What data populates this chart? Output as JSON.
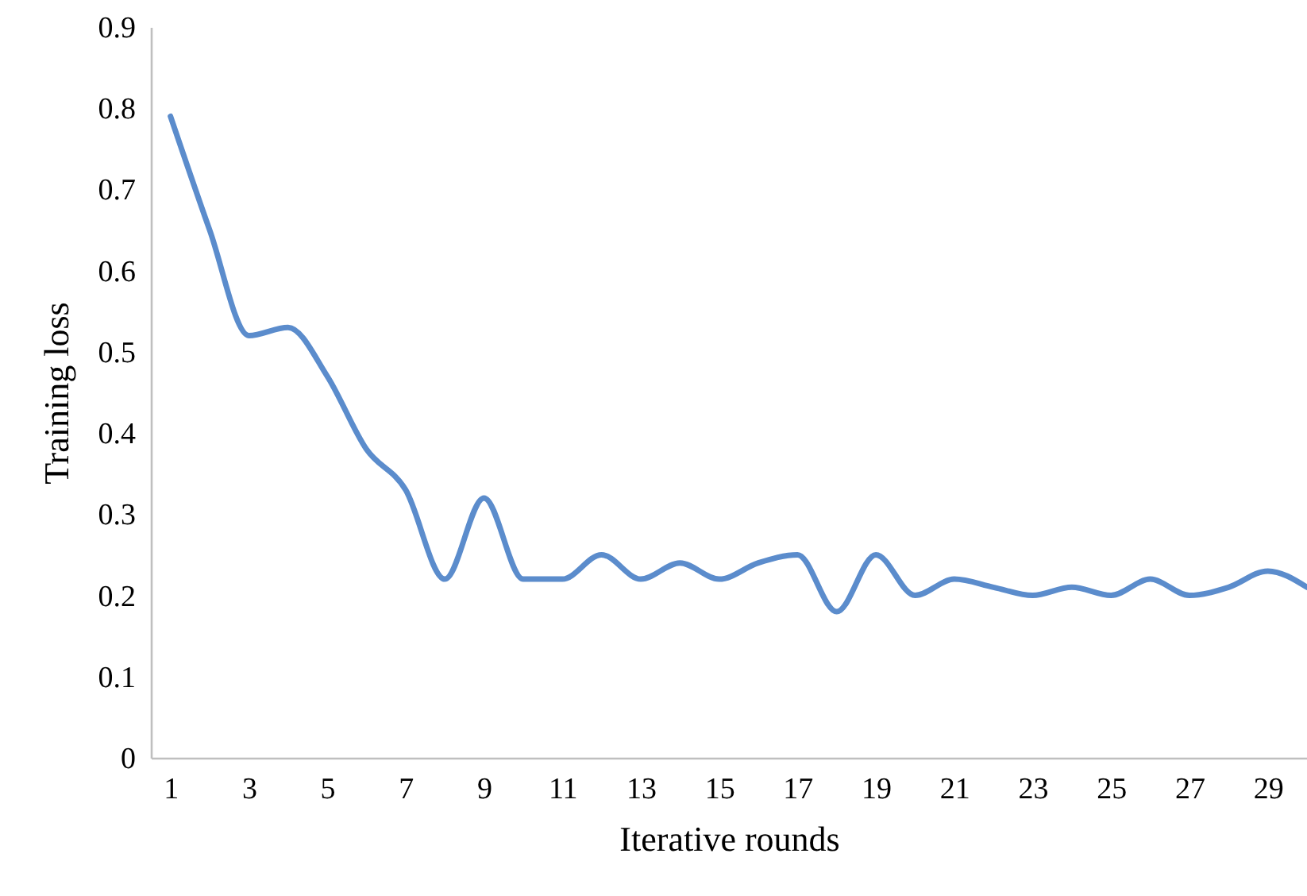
{
  "chart_data": {
    "type": "line",
    "xlabel": "Iterative rounds",
    "ylabel": "Training loss",
    "x": [
      1,
      2,
      3,
      4,
      5,
      6,
      7,
      8,
      9,
      10,
      11,
      12,
      13,
      14,
      15,
      16,
      17,
      18,
      19,
      20,
      21,
      22,
      23,
      24,
      25,
      26,
      27,
      28,
      29,
      30
    ],
    "series": [
      {
        "color": "#5b8ccc",
        "values": [
          0.79,
          0.65,
          0.52,
          0.53,
          0.47,
          0.38,
          0.33,
          0.22,
          0.32,
          0.22,
          0.22,
          0.25,
          0.22,
          0.24,
          0.22,
          0.24,
          0.25,
          0.18,
          0.25,
          0.2,
          0.22,
          0.21,
          0.2,
          0.21,
          0.2,
          0.22,
          0.2,
          0.21,
          0.23,
          0.21
        ]
      }
    ],
    "xlim": [
      0.5,
      30
    ],
    "xticks": [
      1,
      3,
      5,
      7,
      9,
      11,
      13,
      15,
      17,
      19,
      21,
      23,
      25,
      27,
      29
    ],
    "ylim": [
      0,
      0.9
    ],
    "yticks": [
      0,
      0.1,
      0.2,
      0.3,
      0.4,
      0.5,
      0.6,
      0.7,
      0.8,
      0.9
    ],
    "grid": false,
    "marker": "none",
    "line_style": "solid"
  }
}
